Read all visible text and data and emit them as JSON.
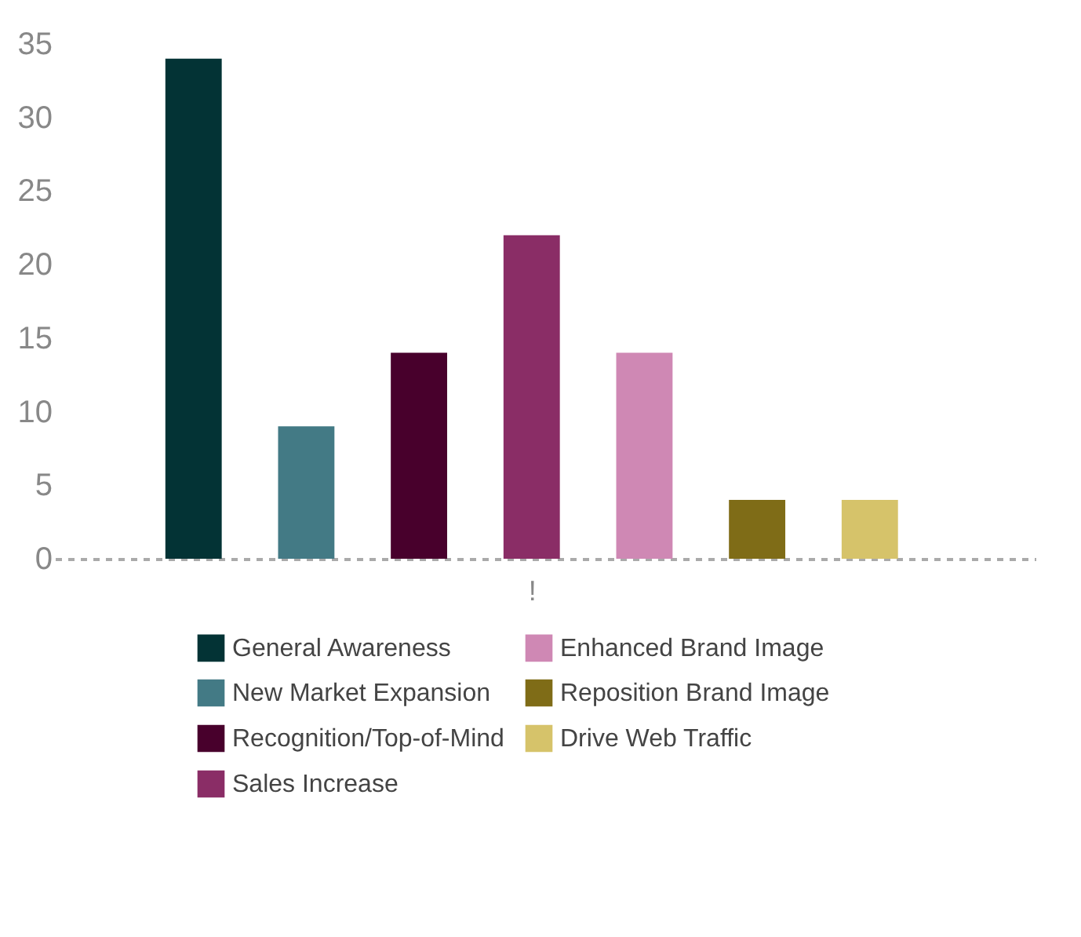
{
  "chart_data": {
    "type": "bar",
    "categories": [
      "!"
    ],
    "series": [
      {
        "name": "General Awareness",
        "color": "#033335",
        "values": [
          34
        ]
      },
      {
        "name": "New Market Expansion",
        "color": "#437a85",
        "values": [
          9
        ]
      },
      {
        "name": "Recognition/Top-of-Mind",
        "color": "#48002c",
        "values": [
          14
        ]
      },
      {
        "name": "Sales Increase",
        "color": "#8a2d66",
        "values": [
          22
        ]
      },
      {
        "name": "Enhanced Brand Image",
        "color": "#cf88b4",
        "values": [
          14
        ]
      },
      {
        "name": "Reposition Brand Image",
        "color": "#7f6c17",
        "values": [
          4
        ]
      },
      {
        "name": "Drive Web Traffic",
        "color": "#d6c36a",
        "values": [
          4
        ]
      }
    ],
    "ylim": [
      0,
      35
    ],
    "yticks": [
      0,
      5,
      10,
      15,
      20,
      25,
      30,
      35
    ],
    "legend": "bottom"
  }
}
